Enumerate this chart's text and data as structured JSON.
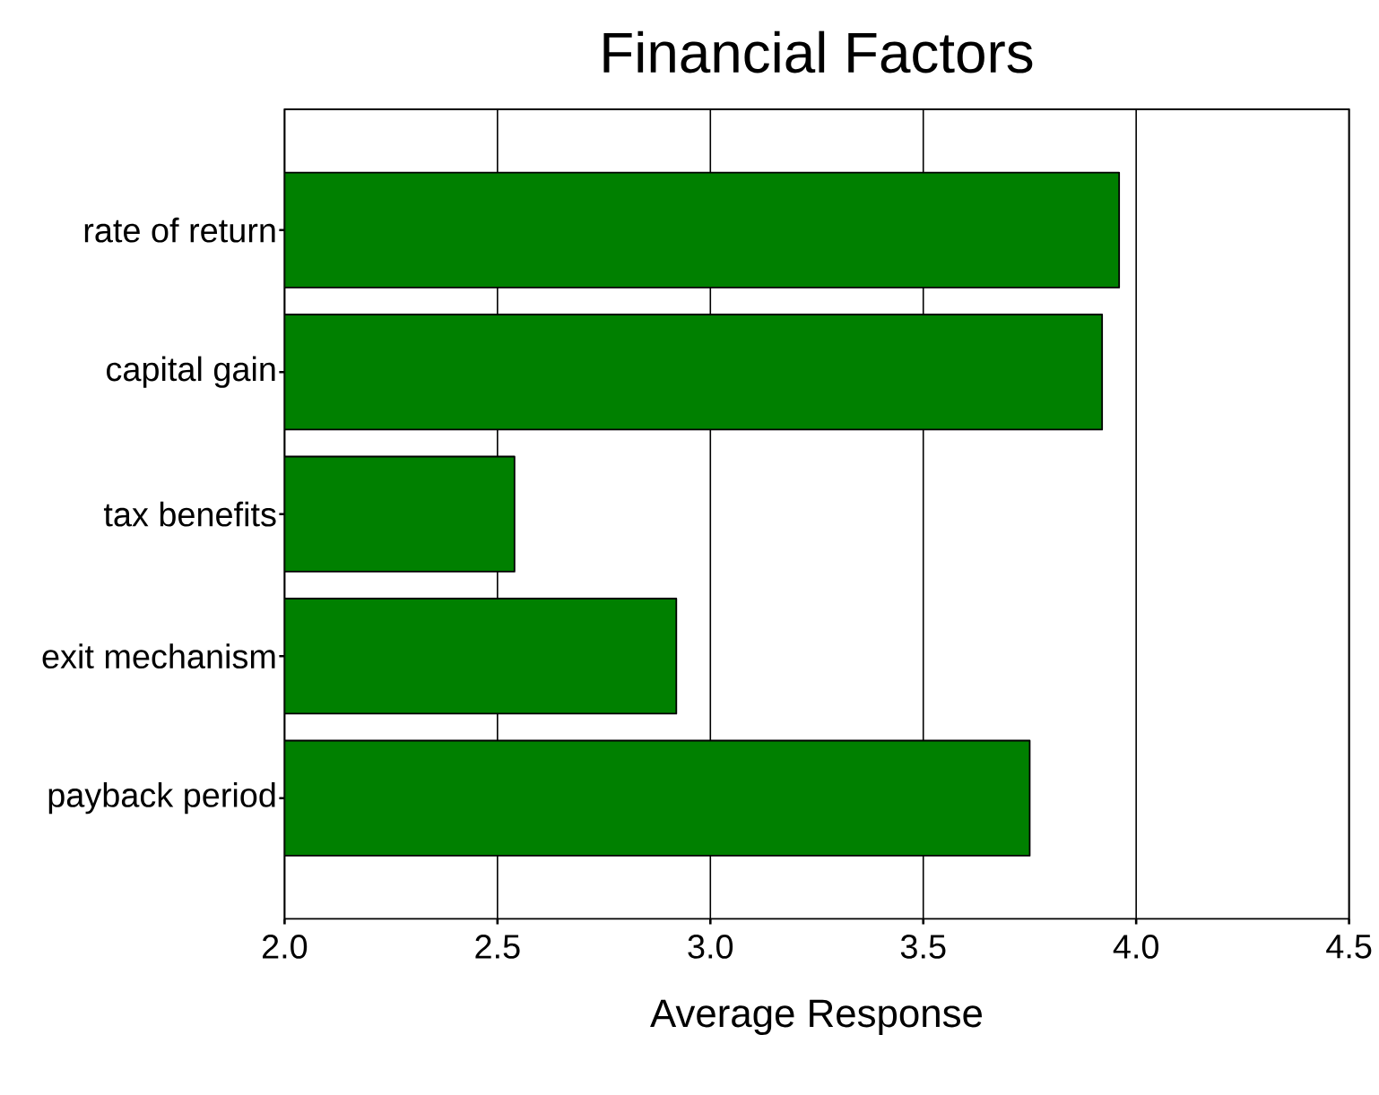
{
  "chart_data": {
    "type": "bar",
    "orientation": "horizontal",
    "title": "Financial Factors",
    "xlabel": "Average Response",
    "categories": [
      "rate of return",
      "capital gain",
      "tax benefits",
      "exit mechanism",
      "payback period"
    ],
    "values": [
      3.96,
      3.92,
      2.54,
      2.92,
      3.75
    ],
    "color": "#008000",
    "xlim": [
      2,
      4.5
    ],
    "xticks": [
      {
        "value": 2,
        "label": "2.0"
      },
      2.5,
      {
        "value": 3,
        "label": "3.0"
      },
      3.5,
      {
        "value": 4,
        "label": "4.0"
      },
      4.5
    ],
    "grid": "x"
  }
}
